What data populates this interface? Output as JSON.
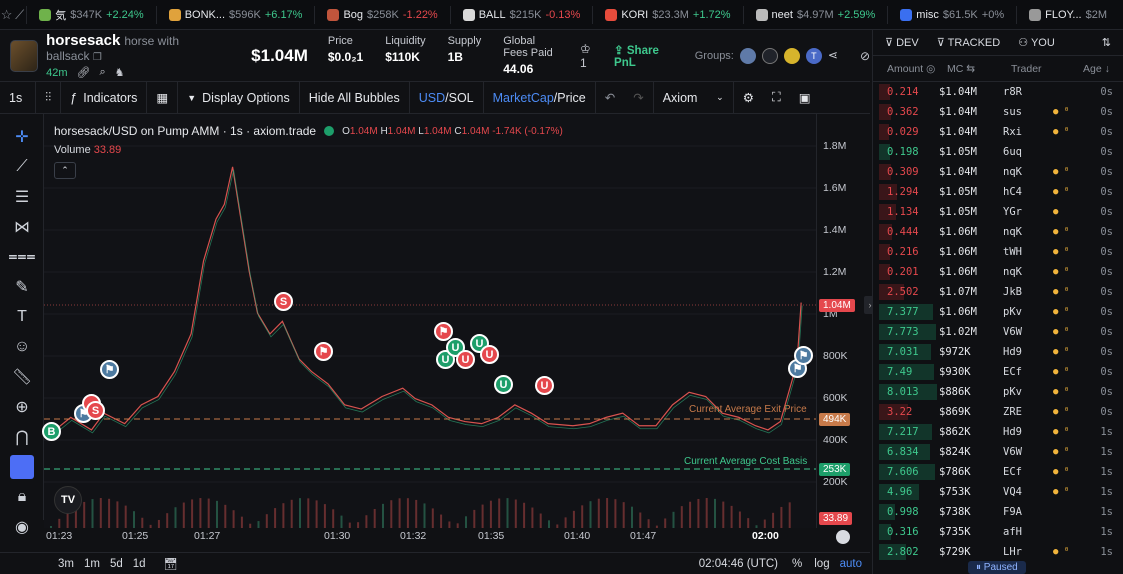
{
  "ticker": [
    {
      "name": "気",
      "mc": "$347K",
      "chg": "+2.24%",
      "dir": "pos",
      "color": "#6fb24b"
    },
    {
      "name": "BONK...",
      "mc": "$596K",
      "chg": "+6.17%",
      "dir": "pos",
      "color": "#e0a23c"
    },
    {
      "name": "Bog",
      "mc": "$258K",
      "chg": "-1.22%",
      "dir": "neg",
      "color": "#c0553c"
    },
    {
      "name": "BALL",
      "mc": "$215K",
      "chg": "-0.13%",
      "dir": "neg",
      "color": "#d9d9d9"
    },
    {
      "name": "KORI",
      "mc": "$23.3M",
      "chg": "+1.72%",
      "dir": "pos",
      "color": "#e74c3c"
    },
    {
      "name": "neet",
      "mc": "$4.97M",
      "chg": "+2.59%",
      "dir": "pos",
      "color": "#bbbbbb"
    },
    {
      "name": "misc",
      "mc": "$61.5K",
      "chg": "+0%",
      "dir": "neu",
      "color": "#3a6ff0"
    },
    {
      "name": "FLOY...",
      "mc": "$2M",
      "chg": "",
      "dir": "neu",
      "color": "#999999"
    }
  ],
  "token": {
    "symbol": "horsesack",
    "name": "horse with ballsack",
    "age": "42m",
    "price_mc": "$1.04M"
  },
  "stats": [
    {
      "label": "Price",
      "value": "$0.0₂1"
    },
    {
      "label": "Liquidity",
      "value": "$110K"
    },
    {
      "label": "Supply",
      "value": "1B"
    },
    {
      "label": "Global Fees Paid",
      "value": "44.06"
    }
  ],
  "header": {
    "crown_count": "1",
    "share_label": "Share PnL",
    "groups_label": "Groups:"
  },
  "toolbar": {
    "interval": "1s",
    "indicators": "Indicators",
    "display": "Display Options",
    "hide": "Hide All Bubbles",
    "usd": "USD",
    "sol": "SOL",
    "mc": "MarketCap",
    "price": "Price",
    "provider": "Axiom"
  },
  "chart_info": {
    "title": "horsesack/USD on Pump AMM · 1s · axiom.trade",
    "o": "1.04M",
    "h": "1.04M",
    "l": "1.04M",
    "c": "1.04M",
    "chg": "-1.74K (-0.17%)",
    "volume_label": "Volume",
    "volume_value": "33.89",
    "exit_label": "Current Average Exit Price",
    "cost_label": "Current Average Cost Basis"
  },
  "chart_data": {
    "type": "line",
    "y_ticks": [
      "1.8M",
      "1.6M",
      "1.4M",
      "1.2M",
      "1M",
      "800K",
      "600K",
      "400K",
      "200K"
    ],
    "x_ticks": [
      "01:23",
      "01:25",
      "01:27",
      "01:30",
      "01:32",
      "01:35",
      "01:40",
      "01:47",
      "02:00"
    ],
    "price_points": [
      [
        0,
        420
      ],
      [
        5,
        500
      ],
      [
        10,
        440
      ],
      [
        13,
        520
      ],
      [
        18,
        470
      ],
      [
        22,
        560
      ],
      [
        26,
        600
      ],
      [
        30,
        720
      ],
      [
        34,
        900
      ],
      [
        37,
        1250
      ],
      [
        40,
        1450
      ],
      [
        42,
        1520
      ],
      [
        44,
        1700
      ],
      [
        46,
        1450
      ],
      [
        48,
        1200
      ],
      [
        50,
        1000
      ],
      [
        53,
        900
      ],
      [
        56,
        960
      ],
      [
        60,
        780
      ],
      [
        63,
        720
      ],
      [
        67,
        660
      ],
      [
        71,
        560
      ],
      [
        75,
        540
      ],
      [
        80,
        600
      ],
      [
        85,
        640
      ],
      [
        88,
        590
      ],
      [
        92,
        560
      ],
      [
        96,
        500
      ],
      [
        100,
        480
      ],
      [
        104,
        470
      ],
      [
        108,
        500
      ],
      [
        112,
        560
      ],
      [
        116,
        520
      ],
      [
        120,
        470
      ],
      [
        126,
        460
      ],
      [
        130,
        470
      ],
      [
        134,
        500
      ],
      [
        138,
        520
      ],
      [
        142,
        460
      ],
      [
        146,
        460
      ],
      [
        150,
        560
      ],
      [
        154,
        620
      ],
      [
        158,
        600
      ],
      [
        162,
        520
      ],
      [
        166,
        500
      ],
      [
        170,
        460
      ],
      [
        173,
        440
      ],
      [
        176,
        480
      ],
      [
        180,
        760
      ],
      [
        181,
        1050
      ]
    ],
    "current_mc": "1.04M",
    "exit_tag": "494K",
    "cost_tag": "253K",
    "volume_tag": "33.89",
    "ylim": [
      200,
      1800
    ]
  },
  "bottom": {
    "ranges": [
      "3m",
      "1m",
      "5d",
      "1d"
    ],
    "time": "02:04:46 (UTC)",
    "pct": "%",
    "log": "log",
    "auto": "auto"
  },
  "trades_header": {
    "dev": "DEV",
    "tracked": "TRACKED",
    "you": "YOU",
    "amount": "Amount",
    "mc": "MC",
    "trader": "Trader",
    "age": "Age"
  },
  "trades": [
    {
      "amt": "0.214",
      "mc": "$1.04M",
      "trader": "r8R",
      "age": "0s",
      "side": "sell",
      "icons": ""
    },
    {
      "amt": "0.362",
      "mc": "$1.04M",
      "trader": "sus",
      "age": "0s",
      "side": "sell",
      "icons": "● ⁰"
    },
    {
      "amt": "0.029",
      "mc": "$1.04M",
      "trader": "Rxi",
      "age": "0s",
      "side": "sell",
      "icons": "● ⁰"
    },
    {
      "amt": "0.198",
      "mc": "$1.05M",
      "trader": "6uq",
      "age": "0s",
      "side": "buy",
      "icons": ""
    },
    {
      "amt": "0.309",
      "mc": "$1.04M",
      "trader": "nqK",
      "age": "0s",
      "side": "sell",
      "icons": "● ⁰"
    },
    {
      "amt": "1.294",
      "mc": "$1.05M",
      "trader": "hC4",
      "age": "0s",
      "side": "sell",
      "icons": "● ⁰"
    },
    {
      "amt": "1.134",
      "mc": "$1.05M",
      "trader": "YGr",
      "age": "0s",
      "side": "sell",
      "icons": "●"
    },
    {
      "amt": "0.444",
      "mc": "$1.06M",
      "trader": "nqK",
      "age": "0s",
      "side": "sell",
      "icons": "● ⁰"
    },
    {
      "amt": "0.216",
      "mc": "$1.06M",
      "trader": "tWH",
      "age": "0s",
      "side": "sell",
      "icons": "● ⁰"
    },
    {
      "amt": "0.201",
      "mc": "$1.06M",
      "trader": "nqK",
      "age": "0s",
      "side": "sell",
      "icons": "● ⁰"
    },
    {
      "amt": "2.502",
      "mc": "$1.07M",
      "trader": "JkB",
      "age": "0s",
      "side": "sell",
      "icons": "● ⁰"
    },
    {
      "amt": "7.377",
      "mc": "$1.06M",
      "trader": "pKv",
      "age": "0s",
      "side": "buy",
      "icons": "● ⁰"
    },
    {
      "amt": "7.773",
      "mc": "$1.02M",
      "trader": "V6W",
      "age": "0s",
      "side": "buy",
      "icons": "● ⁰"
    },
    {
      "amt": "7.031",
      "mc": "$972K",
      "trader": "Hd9",
      "age": "0s",
      "side": "buy",
      "icons": "● ⁰"
    },
    {
      "amt": "7.49",
      "mc": "$930K",
      "trader": "ECf",
      "age": "0s",
      "side": "buy",
      "icons": "● ⁰"
    },
    {
      "amt": "8.013",
      "mc": "$886K",
      "trader": "pKv",
      "age": "0s",
      "side": "buy",
      "icons": "● ⁰"
    },
    {
      "amt": "3.22",
      "mc": "$869K",
      "trader": "ZRE",
      "age": "0s",
      "side": "sell",
      "icons": "● ⁰"
    },
    {
      "amt": "7.217",
      "mc": "$862K",
      "trader": "Hd9",
      "age": "1s",
      "side": "buy",
      "icons": "● ⁰"
    },
    {
      "amt": "6.834",
      "mc": "$824K",
      "trader": "V6W",
      "age": "1s",
      "side": "buy",
      "icons": "● ⁰"
    },
    {
      "amt": "7.606",
      "mc": "$786K",
      "trader": "ECf",
      "age": "1s",
      "side": "buy",
      "icons": "● ⁰"
    },
    {
      "amt": "4.96",
      "mc": "$753K",
      "trader": "VQ4",
      "age": "1s",
      "side": "buy",
      "icons": "● ⁰"
    },
    {
      "amt": "0.998",
      "mc": "$738K",
      "trader": "F9A",
      "age": "1s",
      "side": "buy",
      "icons": ""
    },
    {
      "amt": "0.316",
      "mc": "$735K",
      "trader": "afH",
      "age": "1s",
      "side": "buy",
      "icons": ""
    },
    {
      "amt": "2.802",
      "mc": "$729K",
      "trader": "LHr",
      "age": "1s",
      "side": "buy",
      "icons": "● ⁰"
    }
  ],
  "paused_label": "Paused"
}
